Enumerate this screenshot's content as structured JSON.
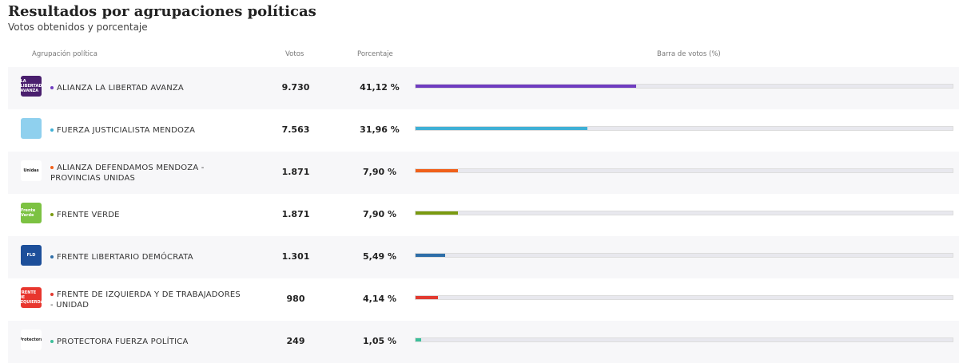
{
  "title": "Resultados por agrupaciones políticas",
  "subtitle": "Votos obtenidos y porcentaje",
  "headers": {
    "party": "Agrupación política",
    "votes": "Votos",
    "pct": "Porcentaje",
    "bar": "Barra de votos (%)"
  },
  "rows": [
    {
      "name": "ALIANZA LA LIBERTAD AVANZA",
      "votes": "9.730",
      "pct": "41,12 %",
      "value": 41.12,
      "color": "#6f3cc0",
      "logo_bg": "#4a1f6e",
      "logo_text": "LA LIBERTAD AVANZA",
      "two_line": false
    },
    {
      "name": "FUERZA JUSTICIALISTA MENDOZA",
      "votes": "7.563",
      "pct": "31,96 %",
      "value": 31.96,
      "color": "#3fb0d6",
      "logo_bg": "#8fd0ee",
      "logo_text": "",
      "two_line": false
    },
    {
      "name": "ALIANZA DEFENDAMOS MENDOZA - PROVINCIAS UNIDAS",
      "votes": "1.871",
      "pct": "7,90 %",
      "value": 7.9,
      "color": "#f0601a",
      "logo_bg": "#ffffff",
      "logo_text": "Unidas",
      "two_line": true
    },
    {
      "name": "FRENTE VERDE",
      "votes": "1.871",
      "pct": "7,90 %",
      "value": 7.9,
      "color": "#7a9a10",
      "logo_bg": "#7cc242",
      "logo_text": "Frente Verde",
      "two_line": false
    },
    {
      "name": "FRENTE LIBERTARIO DEMÓCRATA",
      "votes": "1.301",
      "pct": "5,49 %",
      "value": 5.49,
      "color": "#2e6ea8",
      "logo_bg": "#1d4f9a",
      "logo_text": "FLD",
      "two_line": false
    },
    {
      "name": "FRENTE DE IZQUIERDA Y DE TRABAJADORES - UNIDAD",
      "votes": "980",
      "pct": "4,14 %",
      "value": 4.14,
      "color": "#e23a30",
      "logo_bg": "#e8362e",
      "logo_text": "FRENTE DE IZQUIERDA",
      "two_line": true
    },
    {
      "name": "PROTECTORA FUERZA POLÍTICA",
      "votes": "249",
      "pct": "1,05 %",
      "value": 1.05,
      "color": "#3cbf9a",
      "logo_bg": "#ffffff",
      "logo_text": "Protectora",
      "two_line": false
    }
  ]
}
